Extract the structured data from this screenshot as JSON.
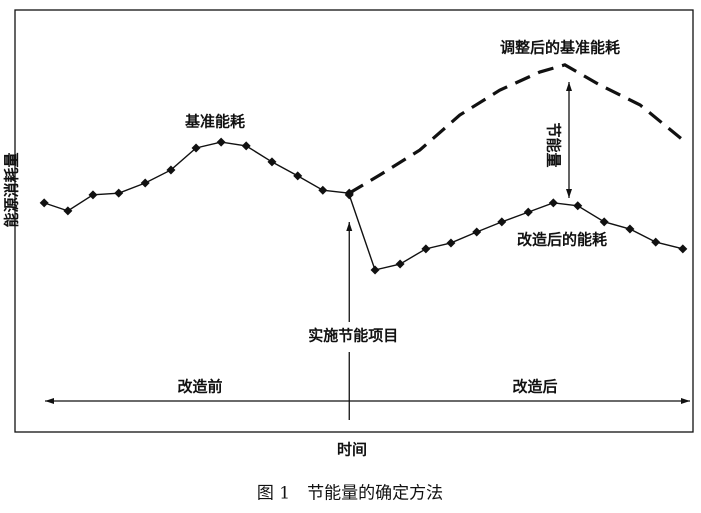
{
  "chart_data": {
    "type": "line",
    "ylabel": "能源消耗量",
    "xlabel": "时间",
    "caption": "图 1　节能量的确定方法",
    "xlim": [
      0,
      100
    ],
    "ylim": [
      0,
      100
    ],
    "series": [
      {
        "name": "基准能耗",
        "color": "#111111",
        "style": "solid",
        "markers": true,
        "x": [
          4.3,
          7.8,
          11.5,
          15.3,
          19.2,
          23.0,
          26.7,
          30.4,
          34.1,
          37.9,
          41.7,
          45.4,
          49.3
        ],
        "values": [
          54.3,
          52.4,
          56.2,
          56.6,
          59.0,
          62.1,
          67.3,
          68.7,
          67.8,
          64.0,
          60.7,
          57.3,
          56.6
        ]
      },
      {
        "name": "改造后的能耗",
        "color": "#111111",
        "style": "solid",
        "markers": true,
        "x": [
          49.3,
          53.1,
          56.8,
          60.6,
          64.3,
          68.1,
          71.8,
          75.7,
          79.4,
          83.0,
          86.9,
          90.7,
          94.5,
          98.5
        ],
        "values": [
          56.2,
          38.4,
          39.8,
          43.4,
          44.8,
          47.4,
          49.8,
          52.1,
          54.3,
          53.6,
          49.8,
          48.1,
          45.0,
          43.4
        ]
      },
      {
        "name": "调整后的基准能耗",
        "color": "#111111",
        "style": "dashed",
        "markers": false,
        "x": [
          49.3,
          53.8,
          59.7,
          65.6,
          71.5,
          77.4,
          81.1,
          86.3,
          92.2,
          98.5
        ],
        "values": [
          56.6,
          60.9,
          66.8,
          75.1,
          81.0,
          85.3,
          87.0,
          82.2,
          77.5,
          69.2
        ]
      }
    ],
    "event": {
      "label": "实施节能项目",
      "x": 49.3
    },
    "savings_label": "节能量",
    "periods": [
      "改造前",
      "改造后"
    ]
  }
}
